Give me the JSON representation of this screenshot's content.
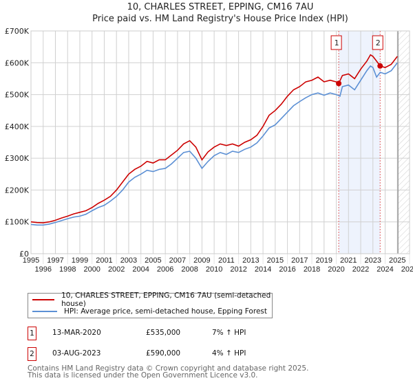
{
  "chart_data": {
    "type": "line",
    "title": "10, CHARLES STREET, EPPING, CM16 7AU",
    "subtitle": "Price paid vs. HM Land Registry's House Price Index (HPI)",
    "xlim": [
      1995,
      2026
    ],
    "ylim": [
      0,
      700000
    ],
    "x_ticks": [
      "1995",
      "1996",
      "1997",
      "1998",
      "1999",
      "2000",
      "2001",
      "2002",
      "2003",
      "2004",
      "2005",
      "2006",
      "2007",
      "2008",
      "2009",
      "2010",
      "2011",
      "2012",
      "2013",
      "2014",
      "2015",
      "2016",
      "2017",
      "2018",
      "2019",
      "2020",
      "2021",
      "2022",
      "2023",
      "2024",
      "2025",
      "2026"
    ],
    "y_ticks": [
      "£0",
      "£100K",
      "£200K",
      "£300K",
      "£400K",
      "£500K",
      "£600K",
      "£700K"
    ],
    "grid": true,
    "series": [
      {
        "name": "10, CHARLES STREET, EPPING, CM16 7AU (semi-detached house)",
        "color": "#cc0000",
        "x": [
          1995,
          1995.5,
          1996,
          1996.5,
          1997,
          1997.5,
          1998,
          1998.5,
          1999,
          1999.5,
          2000,
          2000.5,
          2001,
          2001.5,
          2002,
          2002.5,
          2003,
          2003.5,
          2004,
          2004.5,
          2005,
          2005.5,
          2006,
          2006.5,
          2007,
          2007.5,
          2008,
          2008.5,
          2009,
          2009.5,
          2010,
          2010.5,
          2011,
          2011.5,
          2012,
          2012.5,
          2013,
          2013.5,
          2014,
          2014.5,
          2015,
          2015.5,
          2016,
          2016.5,
          2017,
          2017.5,
          2018,
          2018.5,
          2019,
          2019.5,
          2020,
          2020.2,
          2020.5,
          2021,
          2021.5,
          2022,
          2022.5,
          2022.8,
          2023,
          2023.6,
          2024,
          2024.5,
          2025
        ],
        "y": [
          100,
          98,
          97,
          100,
          105,
          112,
          118,
          125,
          130,
          135,
          145,
          158,
          168,
          180,
          200,
          225,
          250,
          265,
          275,
          290,
          285,
          295,
          295,
          310,
          325,
          345,
          355,
          335,
          295,
          320,
          335,
          345,
          340,
          345,
          338,
          350,
          358,
          372,
          400,
          435,
          450,
          470,
          495,
          515,
          525,
          540,
          545,
          555,
          540,
          545,
          540,
          535,
          560,
          565,
          550,
          580,
          605,
          625,
          620,
          590,
          585,
          595,
          620
        ]
      },
      {
        "name": "HPI: Average price, semi-detached house, Epping Forest",
        "color": "#5b8fd4",
        "x": [
          1995,
          1995.5,
          1996,
          1996.5,
          1997,
          1997.5,
          1998,
          1998.5,
          1999,
          1999.5,
          2000,
          2000.5,
          2001,
          2001.5,
          2002,
          2002.5,
          2003,
          2003.5,
          2004,
          2004.5,
          2005,
          2005.5,
          2006,
          2006.5,
          2007,
          2007.5,
          2008,
          2008.5,
          2009,
          2009.5,
          2010,
          2010.5,
          2011,
          2011.5,
          2012,
          2012.5,
          2013,
          2013.5,
          2014,
          2014.5,
          2015,
          2015.5,
          2016,
          2016.5,
          2017,
          2017.5,
          2018,
          2018.5,
          2019,
          2019.5,
          2020,
          2020.3,
          2020.5,
          2021,
          2021.5,
          2022,
          2022.5,
          2022.8,
          2023,
          2023.3,
          2023.6,
          2024,
          2024.5,
          2025
        ],
        "y": [
          92,
          90,
          90,
          93,
          98,
          104,
          110,
          115,
          118,
          124,
          135,
          145,
          152,
          165,
          180,
          200,
          225,
          240,
          250,
          262,
          258,
          265,
          268,
          282,
          300,
          318,
          322,
          300,
          268,
          290,
          308,
          318,
          312,
          322,
          318,
          328,
          335,
          348,
          370,
          395,
          405,
          425,
          445,
          465,
          478,
          490,
          500,
          505,
          498,
          505,
          500,
          495,
          525,
          530,
          515,
          545,
          575,
          590,
          585,
          555,
          570,
          565,
          575,
          600
        ]
      }
    ],
    "y_units": "thousands GBP",
    "sales": [
      {
        "label": "1",
        "date": "13-MAR-2020",
        "x": 2020.2,
        "price": "£535,000",
        "value": 535,
        "hpi": "7% ↑ HPI"
      },
      {
        "label": "2",
        "date": "03-AUG-2023",
        "x": 2023.59,
        "price": "£590,000",
        "value": 590,
        "hpi": "4% ↑ HPI"
      }
    ],
    "forecast_start": 2025.05,
    "legend_position": "below"
  },
  "footer": {
    "line1": "Contains HM Land Registry data © Crown copyright and database right 2025.",
    "line2": "This data is licensed under the Open Government Licence v3.0."
  }
}
